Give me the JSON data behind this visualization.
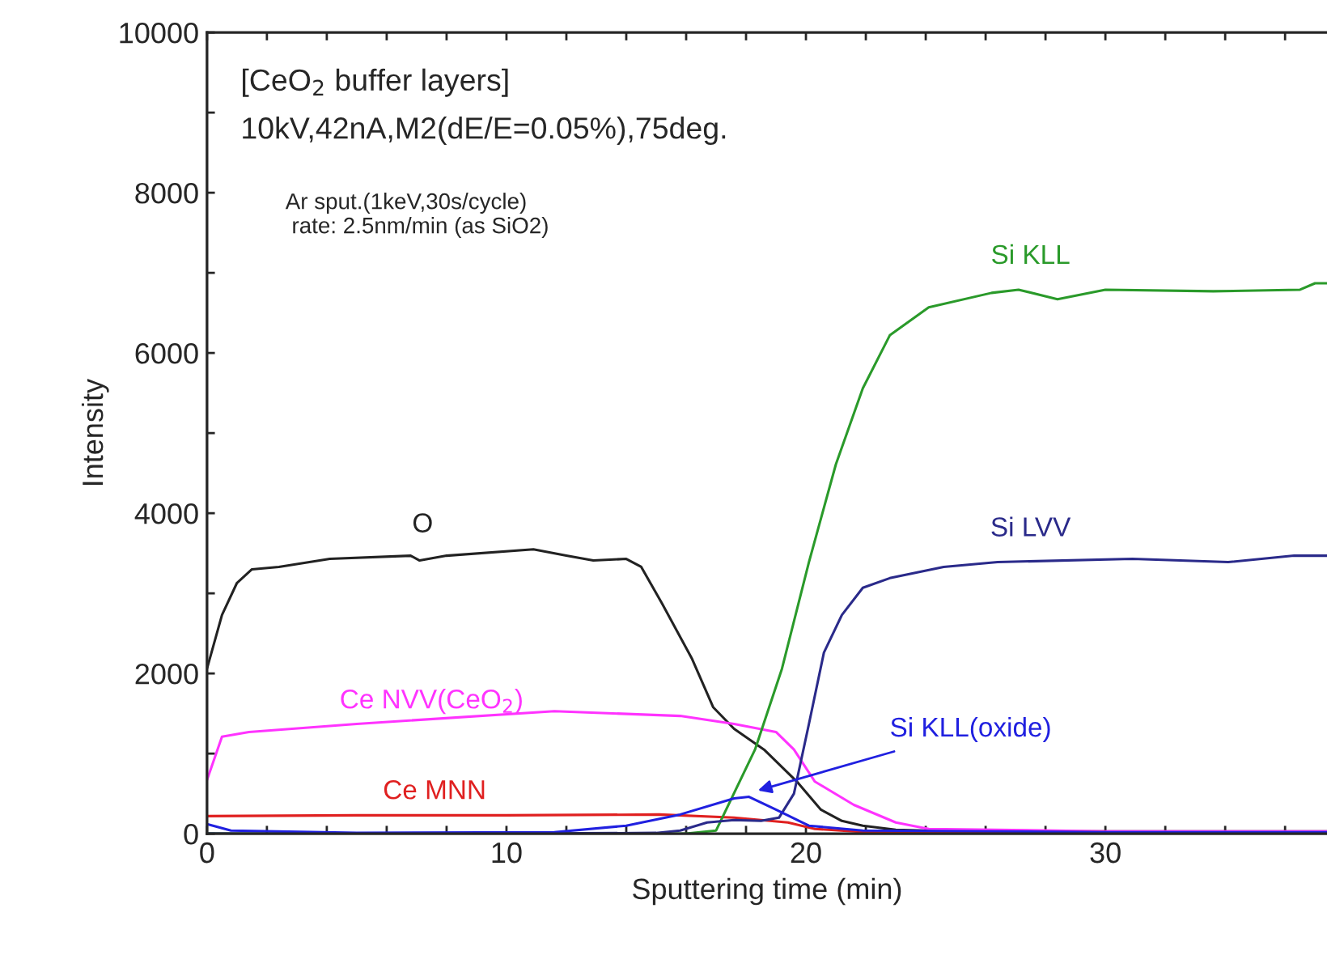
{
  "chart_data": {
    "type": "line",
    "xlabel": "Sputtering time (min)",
    "ylabel": "Intensity",
    "xlim": [
      0,
      37.4
    ],
    "ylim": [
      0,
      10000
    ],
    "xticks": [
      0,
      {
        "value": 2,
        "label": null
      },
      {
        "value": 4,
        "label": null
      },
      {
        "value": 6,
        "label": null
      },
      {
        "value": 8,
        "label": null
      },
      10,
      {
        "value": 12,
        "label": null
      },
      {
        "value": 14,
        "label": null
      },
      {
        "value": 16,
        "label": null
      },
      {
        "value": 18,
        "label": null
      },
      20,
      {
        "value": 22,
        "label": null
      },
      {
        "value": 24,
        "label": null
      },
      {
        "value": 26,
        "label": null
      },
      {
        "value": 28,
        "label": null
      },
      30,
      {
        "value": 32,
        "label": null
      },
      {
        "value": 34,
        "label": null
      },
      {
        "value": 36,
        "label": null
      }
    ],
    "yticks": [
      0,
      {
        "value": 1000,
        "label": null
      },
      2000,
      {
        "value": 3000,
        "label": null
      },
      4000,
      {
        "value": 5000,
        "label": null
      },
      6000,
      {
        "value": 7000,
        "label": null
      },
      8000,
      {
        "value": 9000,
        "label": null
      },
      10000
    ],
    "grid": false,
    "legend": false,
    "marker": "none",
    "line_style": "solid",
    "annotations": [
      "[CeO$_{2}$ buffer layers]",
      "10kV,42nA,M2(dE/E=0.05%),75deg.",
      "Ar sput.(1keV,30s/cycle)\n rate: 2.5nm/min (as SiO2)"
    ],
    "series": [
      {
        "name": "O",
        "color": "#222222",
        "x": [
          0,
          0.5,
          1.0,
          1.5,
          2.4,
          4.1,
          6.8,
          7.1,
          8.0,
          10.9,
          12.0,
          12.9,
          14.0,
          14.5,
          15.2,
          16.2,
          16.9,
          17.6,
          18.6,
          19.7,
          20.5,
          21.2,
          21.9,
          23,
          25,
          30,
          37.4
        ],
        "values": [
          2060,
          2730,
          3130,
          3300,
          3330,
          3430,
          3470,
          3410,
          3470,
          3550,
          3470,
          3410,
          3430,
          3330,
          2870,
          2180,
          1580,
          1310,
          1050,
          650,
          300,
          160,
          100,
          50,
          30,
          30,
          30
        ]
      },
      {
        "name": "Ce NVV(CeO$_{2}$)",
        "color": "#ff33ff",
        "x": [
          0,
          0.5,
          1.4,
          5.0,
          11.6,
          15.8,
          17.6,
          19.0,
          19.6,
          20.3,
          21.6,
          23.0,
          24.1,
          30,
          37.4
        ],
        "values": [
          670,
          1210,
          1270,
          1370,
          1530,
          1470,
          1370,
          1270,
          1050,
          650,
          360,
          140,
          60,
          30,
          30
        ]
      },
      {
        "name": "Ce MNN",
        "color": "#e02020",
        "x": [
          0,
          5,
          10,
          15.1,
          17.6,
          19.4,
          20.3,
          22,
          30
        ],
        "values": [
          220,
          230,
          230,
          240,
          200,
          140,
          60,
          20,
          20
        ]
      },
      {
        "name": "Si KLL",
        "color": "#2a9a2a",
        "x": [
          0,
          10,
          16,
          17.0,
          18.3,
          19.2,
          20.1,
          21.0,
          21.9,
          22.8,
          24.1,
          26.2,
          27.1,
          28.4,
          30,
          33.6,
          36.5,
          37.0,
          37.4
        ],
        "values": [
          0,
          0,
          0,
          40,
          1050,
          2060,
          3390,
          4610,
          5560,
          6220,
          6570,
          6750,
          6790,
          6670,
          6790,
          6770,
          6790,
          6870,
          6870
        ]
      },
      {
        "name": "Si LVV",
        "color": "#2a2a8a",
        "x": [
          0,
          10,
          15.0,
          15.8,
          16.7,
          17.6,
          18.5,
          19.1,
          19.6,
          20.1,
          20.6,
          21.2,
          21.9,
          22.8,
          24.6,
          26.4,
          30.9,
          34.1,
          36.3,
          37.4
        ],
        "values": [
          0,
          0,
          10,
          40,
          140,
          170,
          160,
          200,
          500,
          1370,
          2260,
          2730,
          3070,
          3190,
          3330,
          3390,
          3430,
          3390,
          3470,
          3470
        ]
      },
      {
        "name": "Si KLL(oxide)",
        "color": "#2020e0",
        "x": [
          0,
          0.8,
          5,
          11.6,
          14.0,
          15.8,
          17.6,
          18.1,
          19.0,
          20.1,
          21.9,
          30,
          37.4
        ],
        "values": [
          120,
          40,
          10,
          20,
          100,
          240,
          440,
          460,
          300,
          100,
          40,
          20,
          20
        ]
      }
    ]
  }
}
